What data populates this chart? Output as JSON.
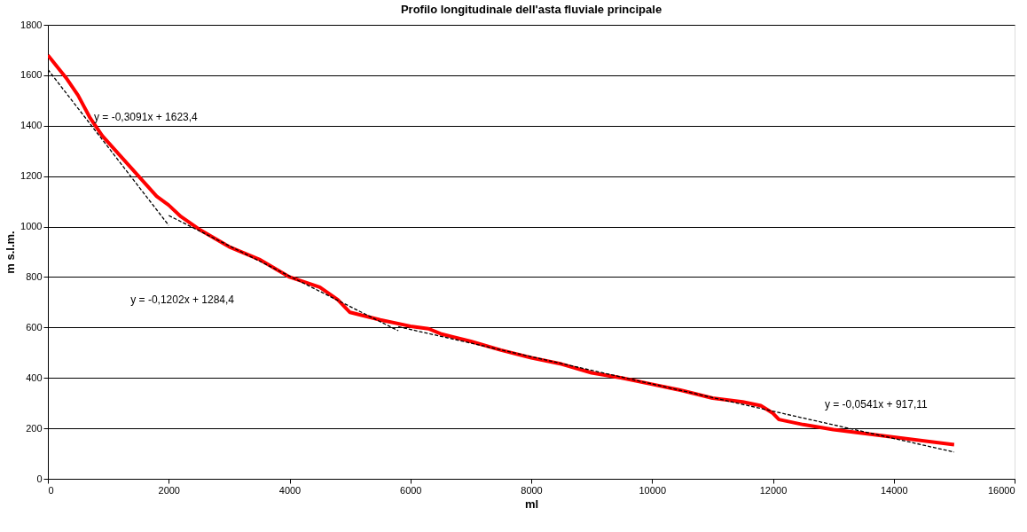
{
  "chart_data": {
    "type": "line",
    "title": "Profilo longitudinale dell'asta fluviale principale",
    "xlabel": "ml",
    "ylabel": "m s.l.m.",
    "xlim": [
      0,
      16000
    ],
    "xticks": [
      0,
      2000,
      4000,
      6000,
      8000,
      10000,
      12000,
      14000,
      16000
    ],
    "ylim": [
      0,
      1800
    ],
    "yticks": [
      0,
      200,
      400,
      600,
      800,
      1000,
      1200,
      1400,
      1600,
      1800
    ],
    "grid": "y",
    "marker": "none",
    "series": [
      {
        "color": "#ff0000",
        "line_style": "solid",
        "x": [
          0,
          100,
          300,
          500,
          700,
          900,
          1200,
          1500,
          1800,
          2000,
          2200,
          2500,
          3000,
          3500,
          4000,
          4500,
          4800,
          5000,
          5500,
          6000,
          6300,
          6500,
          7000,
          7500,
          8000,
          8500,
          9000,
          9500,
          10000,
          10500,
          11000,
          11500,
          11800,
          12000,
          12100,
          12500,
          13000,
          14000,
          15000
        ],
        "values": [
          1680,
          1650,
          1590,
          1520,
          1430,
          1360,
          1280,
          1200,
          1120,
          1085,
          1040,
          990,
          920,
          870,
          800,
          760,
          710,
          660,
          630,
          605,
          595,
          575,
          545,
          510,
          480,
          455,
          420,
          400,
          375,
          350,
          320,
          305,
          290,
          260,
          235,
          215,
          195,
          165,
          135
        ]
      },
      {
        "type": "line",
        "color": "#000000",
        "line_style": "dashed",
        "x": [
          0,
          2000
        ],
        "values": [
          1623,
          1005
        ]
      },
      {
        "type": "line",
        "color": "#000000",
        "line_style": "dashed",
        "x": [
          2000,
          5800
        ],
        "values": [
          1044,
          587
        ]
      },
      {
        "type": "line",
        "color": "#000000",
        "line_style": "dashed",
        "x": [
          5800,
          15000
        ],
        "values": [
          603,
          106
        ]
      }
    ],
    "annotations": [
      "y = -0,3091x + 1623,4",
      "y = -0,1202x + 1284,4",
      "y = -0,0541x + 917,11"
    ]
  }
}
